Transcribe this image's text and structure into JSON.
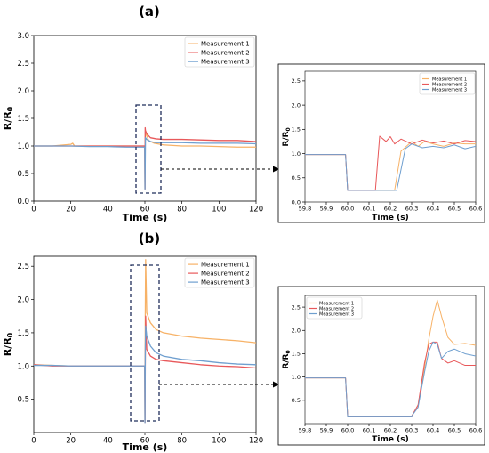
{
  "panels": [
    {
      "label": "(a)",
      "main_chart": {
        "type": "line",
        "title": "",
        "xlabel": "Time (s)",
        "ylabel_main": "R/R",
        "ylabel_sub": "0",
        "xlim": [
          0,
          120
        ],
        "ylim": [
          0,
          3.0
        ],
        "xticks": [
          0,
          20,
          40,
          60,
          80,
          100,
          120
        ],
        "yticks": [
          0.0,
          0.5,
          1.0,
          1.5,
          2.0,
          2.5,
          3.0
        ],
        "ytick_labels": [
          "0.0",
          "0.5",
          "1.0",
          "1.5",
          "2.0",
          "2.5",
          "3.0"
        ],
        "legend_position": "top-right",
        "series": [
          {
            "name": "Measurement 1",
            "color": "#f7b267",
            "x": [
              0,
              10,
              20,
              21,
              22,
              30,
              40,
              50,
              58,
              59.9,
              60.05,
              60.2,
              60.4,
              62,
              65,
              70,
              80,
              90,
              100,
              110,
              120
            ],
            "y": [
              1.0,
              1.0,
              1.03,
              1.05,
              1.0,
              1.0,
              1.0,
              1.0,
              1.0,
              1.0,
              0.22,
              1.1,
              1.25,
              1.1,
              1.05,
              1.02,
              1.0,
              1.0,
              0.99,
              0.98,
              0.98
            ]
          },
          {
            "name": "Measurement 2",
            "color": "#e8585a",
            "x": [
              0,
              10,
              20,
              30,
              40,
              50,
              58,
              59.9,
              60.05,
              60.15,
              60.3,
              61,
              63,
              66,
              70,
              80,
              90,
              100,
              110,
              120
            ],
            "y": [
              1.0,
              1.0,
              1.0,
              1.0,
              1.0,
              1.0,
              1.0,
              1.0,
              0.22,
              1.33,
              1.28,
              1.22,
              1.15,
              1.13,
              1.12,
              1.12,
              1.11,
              1.1,
              1.1,
              1.08
            ]
          },
          {
            "name": "Measurement 3",
            "color": "#6f9fcf",
            "x": [
              0,
              10,
              20,
              30,
              40,
              50,
              58,
              59.9,
              60.05,
              60.3,
              61,
              63,
              66,
              70,
              80,
              90,
              100,
              110,
              120
            ],
            "y": [
              1.0,
              1.0,
              1.0,
              0.99,
              0.99,
              0.98,
              0.98,
              0.98,
              0.22,
              1.15,
              1.12,
              1.08,
              1.06,
              1.06,
              1.06,
              1.05,
              1.05,
              1.05,
              1.04
            ]
          }
        ]
      },
      "inset_chart": {
        "type": "line",
        "title": "",
        "xlabel": "Time (s)",
        "ylabel_main": "R/R",
        "ylabel_sub": "0",
        "xlim": [
          59.8,
          60.6
        ],
        "ylim": [
          0,
          2.7
        ],
        "xticks": [
          59.8,
          59.9,
          60.0,
          60.1,
          60.2,
          60.3,
          60.4,
          60.5,
          60.6
        ],
        "xtick_labels": [
          "59.8",
          "59.9",
          "60.0",
          "60.1",
          "60.2",
          "60.3",
          "60.4",
          "60.5",
          "60.6"
        ],
        "yticks": [
          0.0,
          0.5,
          1.0,
          1.5,
          2.0,
          2.5
        ],
        "ytick_labels": [
          "0.0",
          "0.5",
          "1.0",
          "1.5",
          "2.0",
          "2.5"
        ],
        "legend_position": "top-right",
        "series": [
          {
            "name": "Measurement 1",
            "color": "#f7b267",
            "x": [
              59.8,
              59.99,
              60.0,
              60.22,
              60.25,
              60.3,
              60.33,
              60.36,
              60.4,
              60.45,
              60.5,
              60.55,
              60.6
            ],
            "y": [
              0.98,
              0.98,
              0.24,
              0.24,
              1.05,
              1.25,
              1.15,
              1.25,
              1.2,
              1.15,
              1.22,
              1.2,
              1.2
            ]
          },
          {
            "name": "Measurement 2",
            "color": "#e8585a",
            "x": [
              59.8,
              59.99,
              60.0,
              60.13,
              60.15,
              60.18,
              60.2,
              60.22,
              60.25,
              60.3,
              60.35,
              60.4,
              60.45,
              60.5,
              60.55,
              60.6
            ],
            "y": [
              0.98,
              0.98,
              0.24,
              0.24,
              1.36,
              1.25,
              1.35,
              1.2,
              1.3,
              1.2,
              1.28,
              1.22,
              1.26,
              1.2,
              1.27,
              1.25
            ]
          },
          {
            "name": "Measurement 3",
            "color": "#6f9fcf",
            "x": [
              59.8,
              59.99,
              60.0,
              60.23,
              60.27,
              60.3,
              60.35,
              60.4,
              60.45,
              60.5,
              60.55,
              60.6
            ],
            "y": [
              0.98,
              0.98,
              0.24,
              0.24,
              1.1,
              1.2,
              1.12,
              1.15,
              1.12,
              1.18,
              1.1,
              1.15
            ]
          }
        ]
      }
    },
    {
      "label": "(b)",
      "main_chart": {
        "type": "line",
        "title": "",
        "xlabel": "Time (s)",
        "ylabel_main": "R/R",
        "ylabel_sub": "0",
        "xlim": [
          0,
          120
        ],
        "ylim": [
          0,
          2.65
        ],
        "xticks": [
          0,
          20,
          40,
          60,
          80,
          100,
          120
        ],
        "yticks": [
          0.5,
          1.0,
          1.5,
          2.0,
          2.5
        ],
        "ytick_labels": [
          "0.5",
          "1.0",
          "1.5",
          "2.0",
          "2.5"
        ],
        "legend_position": "top-right",
        "series": [
          {
            "name": "Measurement 1",
            "color": "#f7b267",
            "x": [
              0,
              10,
              20,
              30,
              40,
              50,
              58,
              59.9,
              60.05,
              60.2,
              60.4,
              61,
              63,
              66,
              70,
              80,
              90,
              100,
              110,
              120
            ],
            "y": [
              1.02,
              1.01,
              1.0,
              1.0,
              1.0,
              1.0,
              1.0,
              1.0,
              0.15,
              1.75,
              2.6,
              1.8,
              1.65,
              1.55,
              1.5,
              1.45,
              1.42,
              1.4,
              1.38,
              1.35
            ]
          },
          {
            "name": "Measurement 2",
            "color": "#e8585a",
            "x": [
              0,
              10,
              20,
              30,
              40,
              50,
              58,
              59.9,
              60.05,
              60.2,
              60.4,
              61,
              63,
              66,
              70,
              80,
              90,
              100,
              110,
              120
            ],
            "y": [
              1.02,
              1.0,
              1.0,
              1.0,
              1.0,
              1.0,
              1.0,
              1.0,
              0.15,
              1.0,
              1.75,
              1.25,
              1.15,
              1.1,
              1.08,
              1.05,
              1.02,
              1.0,
              0.99,
              0.97
            ]
          },
          {
            "name": "Measurement 3",
            "color": "#6f9fcf",
            "x": [
              0,
              10,
              20,
              30,
              40,
              50,
              58,
              59.9,
              60.05,
              60.2,
              60.4,
              61,
              63,
              66,
              70,
              80,
              90,
              100,
              110,
              120
            ],
            "y": [
              1.01,
              1.01,
              1.0,
              1.0,
              1.0,
              1.0,
              1.0,
              1.0,
              0.15,
              1.2,
              1.6,
              1.45,
              1.3,
              1.2,
              1.15,
              1.1,
              1.08,
              1.05,
              1.03,
              1.02
            ]
          }
        ]
      },
      "inset_chart": {
        "type": "line",
        "title": "",
        "xlabel": "Time (s)",
        "ylabel_main": "R/R",
        "ylabel_sub": "0",
        "xlim": [
          59.8,
          60.6
        ],
        "ylim": [
          0,
          2.75
        ],
        "xticks": [
          59.8,
          59.9,
          60.0,
          60.1,
          60.2,
          60.3,
          60.4,
          60.5,
          60.6
        ],
        "xtick_labels": [
          "59.8",
          "59.9",
          "60.0",
          "60.1",
          "60.2",
          "60.3",
          "60.4",
          "60.5",
          "60.6"
        ],
        "yticks": [
          0.5,
          1.0,
          1.5,
          2.0,
          2.5
        ],
        "ytick_labels": [
          "0.5",
          "1.0",
          "1.5",
          "2.0",
          "2.5"
        ],
        "legend_position": "top-left",
        "series": [
          {
            "name": "Measurement 1",
            "color": "#f7b267",
            "x": [
              59.8,
              59.99,
              60.0,
              60.3,
              60.33,
              60.36,
              60.38,
              60.4,
              60.42,
              60.44,
              60.47,
              60.5,
              60.55,
              60.6
            ],
            "y": [
              0.98,
              0.98,
              0.16,
              0.16,
              0.4,
              1.2,
              1.8,
              2.3,
              2.65,
              2.3,
              1.85,
              1.7,
              1.72,
              1.68
            ]
          },
          {
            "name": "Measurement 2",
            "color": "#e8585a",
            "x": [
              59.8,
              59.99,
              60.0,
              60.3,
              60.33,
              60.36,
              60.38,
              60.4,
              60.42,
              60.44,
              60.47,
              60.5,
              60.55,
              60.6
            ],
            "y": [
              0.98,
              0.98,
              0.16,
              0.16,
              0.4,
              1.3,
              1.7,
              1.75,
              1.75,
              1.4,
              1.3,
              1.35,
              1.25,
              1.25
            ]
          },
          {
            "name": "Measurement 3",
            "color": "#6f9fcf",
            "x": [
              59.8,
              59.99,
              60.0,
              60.3,
              60.33,
              60.36,
              60.38,
              60.4,
              60.42,
              60.44,
              60.47,
              60.5,
              60.55,
              60.6
            ],
            "y": [
              0.98,
              0.98,
              0.16,
              0.16,
              0.35,
              1.1,
              1.55,
              1.75,
              1.7,
              1.4,
              1.55,
              1.6,
              1.5,
              1.45
            ]
          }
        ]
      }
    }
  ]
}
